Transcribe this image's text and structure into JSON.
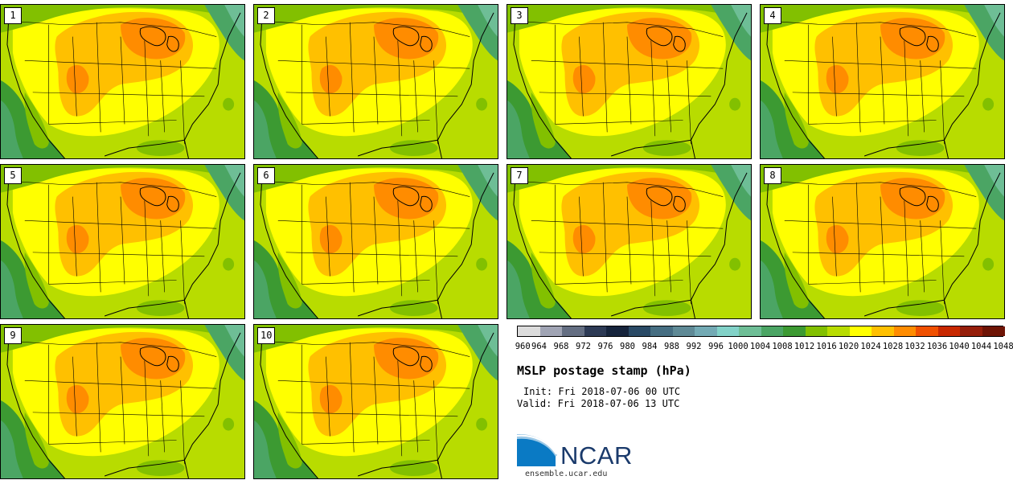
{
  "panels": [
    {
      "label": "1"
    },
    {
      "label": "2"
    },
    {
      "label": "3"
    },
    {
      "label": "4"
    },
    {
      "label": "5"
    },
    {
      "label": "6"
    },
    {
      "label": "7"
    },
    {
      "label": "8"
    },
    {
      "label": "9"
    },
    {
      "label": "10"
    }
  ],
  "colorbar": {
    "levels": [
      "960",
      "964",
      "968",
      "972",
      "976",
      "980",
      "984",
      "988",
      "992",
      "996",
      "1000",
      "1004",
      "1008",
      "1012",
      "1016",
      "1020",
      "1024",
      "1028",
      "1032",
      "1036",
      "1040",
      "1044",
      "1048"
    ],
    "colors": [
      "#dcdcdc",
      "#a0a4b4",
      "#646e82",
      "#2d3a55",
      "#16243c",
      "#2a4a66",
      "#466e82",
      "#5f8a96",
      "#73aab4",
      "#82d2c8",
      "#6ebe96",
      "#4ba564",
      "#3c9a32",
      "#82c000",
      "#b8dc00",
      "#ffff00",
      "#ffc000",
      "#ff8c00",
      "#f05000",
      "#c82800",
      "#961e0a",
      "#6e1405"
    ]
  },
  "title": "MSLP postage stamp (hPa)",
  "init": "Init: Fri 2018-07-06 00 UTC",
  "valid": "Valid: Fri 2018-07-06 13 UTC",
  "logo": {
    "name": "NCAR",
    "url": "ensemble.ucar.edu"
  }
}
